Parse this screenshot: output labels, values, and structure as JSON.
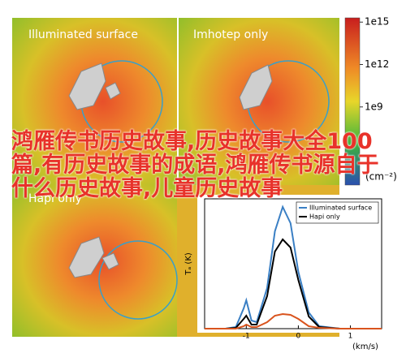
{
  "panels": [
    {
      "title": "Illuminated surface"
    },
    {
      "title": "Imhotep only"
    },
    {
      "title": "Hapi only"
    }
  ],
  "colorbar": {
    "log": true,
    "lim": [
      3000,
      2000000000000000
    ],
    "ticks": [
      {
        "value": 1000000000000000.0,
        "label": "1e15"
      },
      {
        "value": 1000000000000.0,
        "label": "1e12"
      },
      {
        "value": 1000000000.0,
        "label": "1e9"
      }
    ],
    "label": "(cm⁻²)"
  },
  "chart_data": {
    "type": "line",
    "xlabel": "(km/s)",
    "ylabel": "Tₐ (K)",
    "x": [
      -1.8,
      -1.4,
      -1.2,
      -1.05,
      -1.0,
      -0.9,
      -0.8,
      -0.6,
      -0.45,
      -0.3,
      -0.15,
      0,
      0.2,
      0.4,
      0.8,
      1.2,
      1.6
    ],
    "series": [
      {
        "name": "Illuminated surface",
        "color": "#3a7fc4",
        "values": [
          0,
          0,
          0.2,
          2.5,
          3.5,
          1,
          0.8,
          5,
          12,
          15,
          13,
          7,
          2,
          0.3,
          0,
          0,
          0
        ]
      },
      {
        "name": "Hapi only",
        "color": "#000000",
        "values": [
          0,
          0,
          0.1,
          1.2,
          1.6,
          0.5,
          0.5,
          4,
          9.5,
          11,
          10,
          6,
          1.5,
          0.2,
          0,
          0,
          0
        ]
      },
      {
        "color": "#d9541e",
        "values": [
          0,
          0,
          0,
          0.3,
          0.5,
          0.2,
          0.2,
          0.8,
          1.6,
          1.8,
          1.7,
          1.2,
          0.3,
          0.1,
          0,
          0,
          0
        ]
      }
    ],
    "xlim": [
      -1.8,
      1.6
    ],
    "xticks": [
      -1,
      0,
      1
    ],
    "ylim": [
      0,
      16
    ],
    "legend": "upper right"
  },
  "overlay_text": "鸿雁传书历史故事,历史故事大全100篇,有历史故事的成语,鸿雁传书源自于什么历史故事,儿童历史故事"
}
